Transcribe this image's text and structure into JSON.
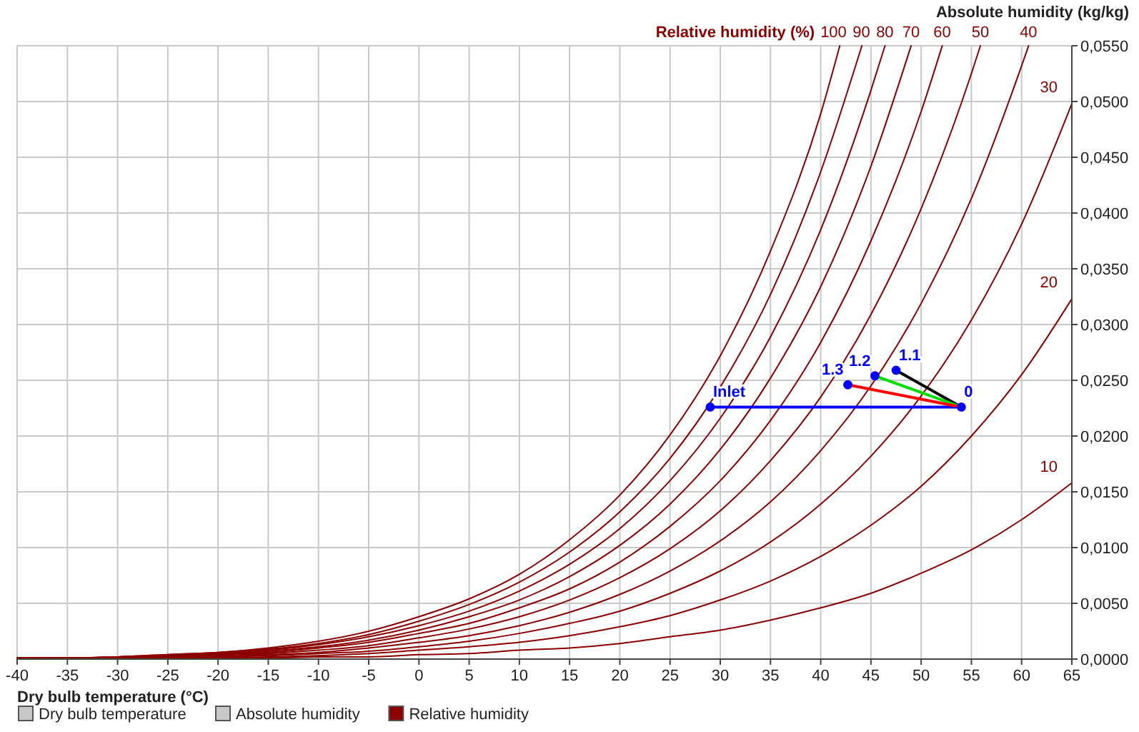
{
  "chart_data": {
    "type": "line",
    "xlabel": "Dry bulb temperature (°C)",
    "ylabel": "Absolute humidity (kg/kg)",
    "xlim": [
      -40,
      65
    ],
    "ylim": [
      0,
      0.055
    ],
    "xticks": [
      -40,
      -35,
      -30,
      -25,
      -20,
      -15,
      -10,
      -5,
      0,
      5,
      10,
      15,
      20,
      25,
      30,
      35,
      40,
      45,
      50,
      55,
      60,
      65
    ],
    "yticks": [
      {
        "value": 0,
        "label": "0,0000"
      },
      {
        "value": 0.005,
        "label": "0,0050"
      },
      {
        "value": 0.01,
        "label": "0,0100"
      },
      {
        "value": 0.015,
        "label": "0,0150"
      },
      {
        "value": 0.02,
        "label": "0,0200"
      },
      {
        "value": 0.025,
        "label": "0,0250"
      },
      {
        "value": 0.03,
        "label": "0,0300"
      },
      {
        "value": 0.035,
        "label": "0,0350"
      },
      {
        "value": 0.04,
        "label": "0,0400"
      },
      {
        "value": 0.045,
        "label": "0,0450"
      },
      {
        "value": 0.05,
        "label": "0,0500"
      },
      {
        "value": 0.055,
        "label": "0,0550"
      }
    ],
    "grid": true,
    "series": [
      {
        "name": "100",
        "color": "#8b0000",
        "x": [
          -40,
          -35,
          -30,
          -25,
          -20,
          -15,
          -10,
          -5,
          0,
          5,
          10,
          15,
          20,
          25,
          30,
          35,
          40,
          41.9
        ],
        "values": [
          0.0001,
          0.0001,
          0.0002,
          0.0004,
          0.0006,
          0.001,
          0.0016,
          0.0025,
          0.0038,
          0.0054,
          0.0076,
          0.0107,
          0.0147,
          0.0201,
          0.0272,
          0.0366,
          0.0489,
          0.055
        ]
      },
      {
        "name": "90",
        "color": "#8b0000",
        "x": [
          -40,
          -35,
          -30,
          -25,
          -20,
          -15,
          -10,
          -5,
          0,
          5,
          10,
          15,
          20,
          25,
          30,
          35,
          40,
          44.1
        ],
        "values": [
          0.0001,
          0.0001,
          0.0002,
          0.0004,
          0.0006,
          0.0009,
          0.0014,
          0.0022,
          0.0034,
          0.0049,
          0.0069,
          0.0096,
          0.0132,
          0.018,
          0.0244,
          0.0327,
          0.0437,
          0.055
        ]
      },
      {
        "name": "80",
        "color": "#8b0000",
        "x": [
          -40,
          -35,
          -30,
          -25,
          -20,
          -15,
          -10,
          -5,
          0,
          5,
          10,
          15,
          20,
          25,
          30,
          35,
          40,
          45,
          46.4
        ],
        "values": [
          0.0001,
          0.0001,
          0.0002,
          0.0003,
          0.0005,
          0.0008,
          0.0013,
          0.002,
          0.003,
          0.0043,
          0.0061,
          0.0085,
          0.0117,
          0.016,
          0.0216,
          0.0289,
          0.0385,
          0.051,
          0.055
        ]
      },
      {
        "name": "70",
        "color": "#8b0000",
        "x": [
          -40,
          -35,
          -30,
          -25,
          -20,
          -15,
          -10,
          -5,
          0,
          5,
          10,
          15,
          20,
          25,
          30,
          35,
          40,
          45,
          49
        ],
        "values": [
          0.0001,
          0.0001,
          0.0002,
          0.0003,
          0.0004,
          0.0007,
          0.0011,
          0.0017,
          0.0026,
          0.0038,
          0.0053,
          0.0074,
          0.0102,
          0.0139,
          0.0188,
          0.0252,
          0.0334,
          0.0442,
          0.055
        ]
      },
      {
        "name": "60",
        "color": "#8b0000",
        "x": [
          -40,
          -35,
          -30,
          -25,
          -20,
          -15,
          -10,
          -5,
          0,
          5,
          10,
          15,
          20,
          25,
          30,
          35,
          40,
          45,
          50,
          52.1
        ],
        "values": [
          0,
          0.0001,
          0.0001,
          0.0002,
          0.0004,
          0.0006,
          0.001,
          0.0015,
          0.0023,
          0.0032,
          0.0046,
          0.0063,
          0.0087,
          0.0119,
          0.016,
          0.0214,
          0.0284,
          0.0375,
          0.0491,
          0.055
        ]
      },
      {
        "name": "50",
        "color": "#8b0000",
        "x": [
          -40,
          -35,
          -30,
          -25,
          -20,
          -15,
          -10,
          -5,
          0,
          5,
          10,
          15,
          20,
          25,
          30,
          35,
          40,
          45,
          50,
          55,
          55.9
        ],
        "values": [
          0,
          0.0001,
          0.0001,
          0.0002,
          0.0003,
          0.0005,
          0.0008,
          0.0012,
          0.0019,
          0.0027,
          0.0038,
          0.0053,
          0.0073,
          0.0099,
          0.0133,
          0.0178,
          0.0235,
          0.0309,
          0.0404,
          0.0525,
          0.055
        ]
      },
      {
        "name": "40",
        "color": "#8b0000",
        "x": [
          -40,
          -35,
          -30,
          -25,
          -20,
          -15,
          -10,
          -5,
          0,
          5,
          10,
          15,
          20,
          25,
          30,
          35,
          40,
          45,
          50,
          55,
          60,
          60.7
        ],
        "values": [
          0,
          0.0001,
          0.0001,
          0.0002,
          0.0003,
          0.0004,
          0.0006,
          0.001,
          0.0015,
          0.0021,
          0.003,
          0.0042,
          0.0058,
          0.0079,
          0.0106,
          0.0141,
          0.0187,
          0.0245,
          0.0319,
          0.0413,
          0.0532,
          0.055
        ]
      },
      {
        "name": "30",
        "color": "#8b0000",
        "x": [
          -40,
          -35,
          -30,
          -25,
          -20,
          -15,
          -10,
          -5,
          0,
          5,
          10,
          15,
          20,
          25,
          30,
          35,
          40,
          45,
          50,
          55,
          60,
          65
        ],
        "values": [
          0,
          0,
          0.0001,
          0.0001,
          0.0002,
          0.0003,
          0.0005,
          0.0007,
          0.0011,
          0.0016,
          0.0023,
          0.0032,
          0.0043,
          0.0059,
          0.0079,
          0.0105,
          0.0139,
          0.0182,
          0.0236,
          0.0304,
          0.039,
          0.0498
        ]
      },
      {
        "name": "20",
        "color": "#8b0000",
        "x": [
          -40,
          -35,
          -30,
          -25,
          -20,
          -15,
          -10,
          -5,
          0,
          5,
          10,
          15,
          20,
          25,
          30,
          35,
          40,
          45,
          50,
          55,
          60,
          65
        ],
        "values": [
          0,
          0,
          0,
          0.0001,
          0.0001,
          0.0002,
          0.0003,
          0.0005,
          0.0008,
          0.0011,
          0.0015,
          0.0021,
          0.0029,
          0.0039,
          0.0053,
          0.007,
          0.0092,
          0.012,
          0.0155,
          0.02,
          0.0255,
          0.0323
        ]
      },
      {
        "name": "10",
        "color": "#8b0000",
        "x": [
          -40,
          -35,
          -30,
          -25,
          -20,
          -15,
          -10,
          -5,
          0,
          5,
          10,
          15,
          20,
          25,
          30,
          35,
          40,
          45,
          50,
          55,
          60,
          65
        ],
        "values": [
          0,
          0,
          0,
          0,
          0.0001,
          0.0001,
          0.0002,
          0.0002,
          0.0004,
          0.0005,
          0.0008,
          0.001,
          0.0014,
          0.002,
          0.0026,
          0.0035,
          0.0046,
          0.0059,
          0.0077,
          0.0098,
          0.0125,
          0.0158
        ]
      },
      {
        "color": "#0000ff",
        "x": [
          29,
          54
        ],
        "values": [
          0.0226,
          0.0226
        ]
      },
      {
        "color": "#000000",
        "x": [
          54,
          47.5
        ],
        "values": [
          0.0226,
          0.0259
        ]
      },
      {
        "color": "#00dd00",
        "x": [
          54,
          45.4
        ],
        "values": [
          0.0226,
          0.0254
        ]
      },
      {
        "color": "#ff0000",
        "x": [
          54,
          42.7
        ],
        "values": [
          0.0226,
          0.0246
        ]
      },
      {
        "type": "scatter",
        "marker": "circle",
        "color": "#0000ff",
        "x": [
          29,
          54,
          47.5,
          45.4,
          42.7
        ],
        "values": [
          0.0226,
          0.0226,
          0.0259,
          0.0254,
          0.0246
        ]
      }
    ],
    "annotations": [
      "Relative humidity (%)",
      "Dry bulb temperature",
      "Absolute humidity",
      "Relative humidity",
      {
        "text": "Inlet",
        "x": 29,
        "y": 0.0226
      },
      {
        "text": "0",
        "x": 54,
        "y": 0.0226
      },
      {
        "text": "1.1",
        "x": 47.5,
        "y": 0.0259
      },
      {
        "text": "1.2",
        "x": 45.4,
        "y": 0.0254
      },
      {
        "text": "1.3",
        "x": 42.7,
        "y": 0.0246
      }
    ]
  }
}
